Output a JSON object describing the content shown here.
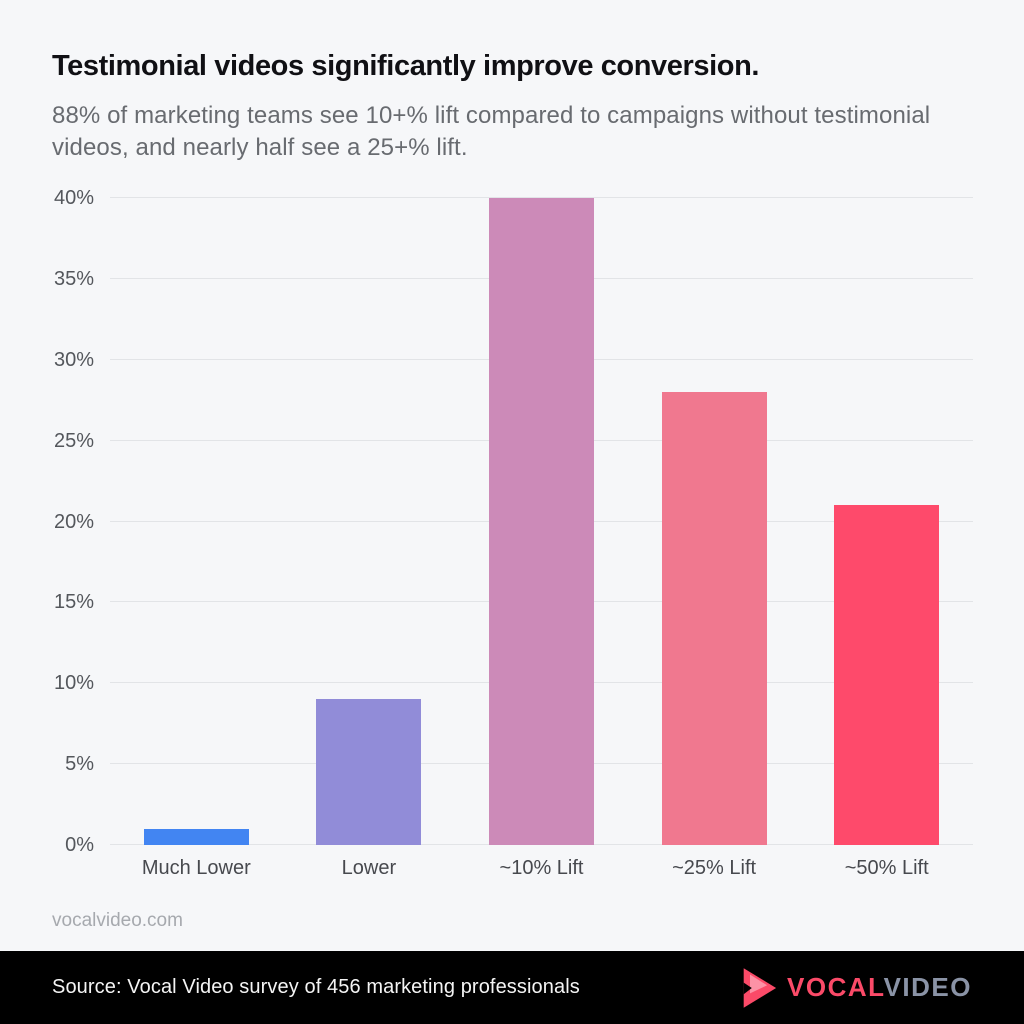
{
  "page": {
    "title": "Testimonial videos significantly improve conversion.",
    "subtitle": "88% of marketing teams see 10+% lift compared to campaigns without testimonial videos, and nearly half see a 25+% lift.",
    "website": "vocalvideo.com",
    "background_color": "#f6f7f9"
  },
  "chart_data": {
    "type": "bar",
    "title": "Testimonial videos significantly improve conversion.",
    "categories": [
      "Much Lower",
      "Lower",
      "~10% Lift",
      "~25% Lift",
      "~50% Lift"
    ],
    "values": [
      1,
      9,
      40,
      28,
      21
    ],
    "bar_colors": [
      "#4285f2",
      "#918cd8",
      "#cc8ab8",
      "#f0788f",
      "#fe4a6b"
    ],
    "xlabel": "",
    "ylabel": "",
    "ylim": [
      0,
      40
    ],
    "ytick_step": 5,
    "ytick_suffix": "%",
    "yticks": [
      "0%",
      "5%",
      "10%",
      "15%",
      "20%",
      "25%",
      "30%",
      "35%",
      "40%"
    ],
    "grid": true,
    "gridline_color": "#e2e4e7",
    "legend": "none"
  },
  "footer": {
    "source_text": "Source: Vocal Video survey of 456 marketing professionals",
    "background_color": "#000000",
    "logo": {
      "icon": "play-icon",
      "word_primary": "VOCAL",
      "word_secondary": "VIDEO",
      "primary_color": "#fb4a68",
      "secondary_color": "#8a93a6"
    }
  }
}
